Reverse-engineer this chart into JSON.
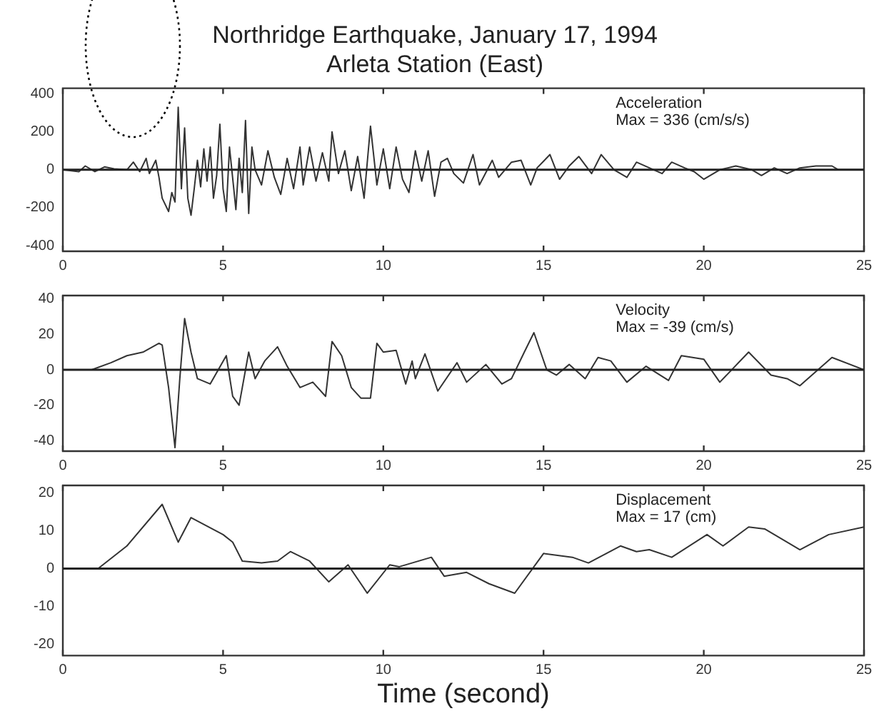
{
  "chart_data": [
    {
      "type": "line",
      "title": "Northridge Earthquake, January 17, 1994",
      "subtitle": "Arleta Station (East)",
      "annotations": [
        "Acceleration",
        "Max = 336 (cm/s/s)"
      ],
      "xlim": [
        0,
        25
      ],
      "xticks": [
        0,
        5,
        10,
        15,
        20,
        25
      ],
      "ylim": [
        -430,
        430
      ],
      "yticks": [
        -400,
        -200,
        0,
        200,
        400
      ],
      "ref_lines": [
        {
          "axis": "y",
          "value": 0
        }
      ],
      "marker": "none",
      "line_style": "solid",
      "grid": false,
      "legend": false,
      "series": [
        {
          "color": "#333333",
          "x": [
            0,
            0.5,
            0.7,
            1.0,
            1.3,
            1.6,
            2.0,
            2.2,
            2.4,
            2.6,
            2.7,
            2.9,
            3.0,
            3.1,
            3.3,
            3.4,
            3.5,
            3.6,
            3.7,
            3.8,
            3.9,
            4.0,
            4.1,
            4.2,
            4.3,
            4.4,
            4.5,
            4.6,
            4.7,
            4.8,
            4.9,
            5.0,
            5.1,
            5.2,
            5.4,
            5.5,
            5.6,
            5.7,
            5.8,
            5.9,
            6.0,
            6.2,
            6.4,
            6.6,
            6.8,
            7.0,
            7.2,
            7.4,
            7.5,
            7.7,
            7.9,
            8.1,
            8.3,
            8.4,
            8.6,
            8.8,
            9.0,
            9.2,
            9.4,
            9.6,
            9.8,
            10.0,
            10.2,
            10.4,
            10.6,
            10.8,
            11.0,
            11.2,
            11.4,
            11.6,
            11.8,
            12.0,
            12.2,
            12.5,
            12.8,
            13.0,
            13.4,
            13.6,
            14.0,
            14.3,
            14.6,
            14.8,
            15.2,
            15.5,
            15.8,
            16.1,
            16.5,
            16.8,
            17.2,
            17.6,
            17.9,
            18.3,
            18.7,
            19.0,
            19.4,
            19.7,
            20.0,
            20.5,
            21,
            21.5,
            21.8,
            22.2,
            22.6,
            23,
            23.5,
            24,
            24.2,
            25
          ],
          "values": [
            0,
            -10,
            20,
            -10,
            15,
            5,
            0,
            40,
            -10,
            60,
            -20,
            50,
            -40,
            -150,
            -220,
            -120,
            -170,
            330,
            -100,
            220,
            -150,
            -240,
            -100,
            50,
            -90,
            110,
            -60,
            120,
            -150,
            -30,
            240,
            -100,
            -220,
            120,
            -210,
            60,
            -120,
            260,
            -230,
            120,
            0,
            -80,
            100,
            -40,
            -130,
            60,
            -100,
            120,
            -80,
            120,
            -60,
            90,
            -60,
            200,
            -20,
            100,
            -110,
            70,
            -150,
            230,
            -80,
            110,
            -100,
            120,
            -50,
            -120,
            100,
            -60,
            100,
            -140,
            40,
            60,
            -20,
            -70,
            80,
            -80,
            50,
            -40,
            40,
            50,
            -80,
            10,
            80,
            -50,
            20,
            70,
            -20,
            80,
            0,
            -40,
            40,
            10,
            -20,
            40,
            10,
            -10,
            -50,
            0,
            20,
            0,
            -30,
            10,
            -20,
            10,
            20,
            20,
            0,
            0
          ]
        }
      ]
    },
    {
      "type": "line",
      "annotations": [
        "Velocity",
        "Max = -39 (cm/s)"
      ],
      "xlim": [
        0,
        25
      ],
      "xticks": [
        0,
        5,
        10,
        15,
        20,
        25
      ],
      "ylim": [
        -46,
        42
      ],
      "yticks": [
        -40,
        -20,
        0,
        20,
        40
      ],
      "ref_lines": [
        {
          "axis": "y",
          "value": 0
        }
      ],
      "marker": "none",
      "line_style": "solid",
      "grid": false,
      "legend": false,
      "series": [
        {
          "color": "#333333",
          "x": [
            0,
            0.9,
            1.5,
            2.0,
            2.5,
            3.0,
            3.1,
            3.3,
            3.5,
            3.65,
            3.8,
            4.0,
            4.2,
            4.6,
            5.1,
            5.3,
            5.5,
            5.8,
            6.0,
            6.3,
            6.7,
            7.0,
            7.4,
            7.8,
            8.2,
            8.4,
            8.7,
            9.0,
            9.3,
            9.6,
            9.8,
            10.0,
            10.4,
            10.7,
            10.9,
            11.0,
            11.3,
            11.7,
            12.3,
            12.6,
            13.2,
            13.7,
            14.0,
            14.4,
            14.7,
            15.1,
            15.4,
            15.8,
            16.3,
            16.7,
            17.1,
            17.6,
            18.2,
            18.9,
            19.3,
            20.0,
            20.5,
            21.4,
            22.1,
            22.6,
            23.0,
            24.0,
            25.0
          ],
          "values": [
            0,
            0,
            4,
            8,
            10,
            15,
            14,
            -10,
            -44,
            -5,
            29,
            10,
            -5,
            -8,
            8,
            -15,
            -20,
            10,
            -5,
            5,
            13,
            2,
            -10,
            -7,
            -15,
            16,
            8,
            -10,
            -16,
            -16,
            15,
            10,
            11,
            -8,
            5,
            -5,
            9,
            -12,
            4,
            -7,
            3,
            -8,
            -5,
            10,
            21,
            0,
            -3,
            3,
            -5,
            7,
            5,
            -7,
            2,
            -6,
            8,
            6,
            -7,
            10,
            -3,
            -5,
            -9,
            7,
            0
          ]
        }
      ]
    },
    {
      "type": "line",
      "annotations": [
        "Displacement",
        "Max = 17 (cm)"
      ],
      "xlabel": "Time (second)",
      "xlim": [
        0,
        25
      ],
      "xticks": [
        0,
        5,
        10,
        15,
        20,
        25
      ],
      "ylim": [
        -23,
        22
      ],
      "yticks": [
        -20,
        -10,
        0,
        10,
        20
      ],
      "ref_lines": [
        {
          "axis": "y",
          "value": 0
        }
      ],
      "marker": "none",
      "line_style": "solid",
      "grid": false,
      "legend": false,
      "series": [
        {
          "color": "#333333",
          "x": [
            0,
            1.1,
            2.0,
            3.1,
            3.6,
            4.0,
            5.0,
            5.3,
            5.6,
            6.2,
            6.7,
            7.1,
            7.7,
            8.3,
            8.9,
            9.5,
            10.2,
            10.5,
            11.5,
            11.9,
            12.6,
            13.3,
            14.1,
            15.0,
            15.9,
            16.4,
            17.4,
            17.9,
            18.3,
            19.0,
            20.1,
            20.6,
            21.4,
            21.9,
            23.0,
            23.9,
            25
          ],
          "values": [
            0,
            0,
            6,
            17,
            7,
            13.5,
            9,
            7,
            2,
            1.5,
            2,
            4.5,
            2,
            -3.5,
            1,
            -6.5,
            1,
            0.5,
            3,
            -2,
            -1,
            -4,
            -6.5,
            4,
            3,
            1.5,
            6,
            4.5,
            5,
            3,
            9,
            6,
            11,
            10.5,
            5,
            9,
            11
          ]
        }
      ]
    }
  ]
}
